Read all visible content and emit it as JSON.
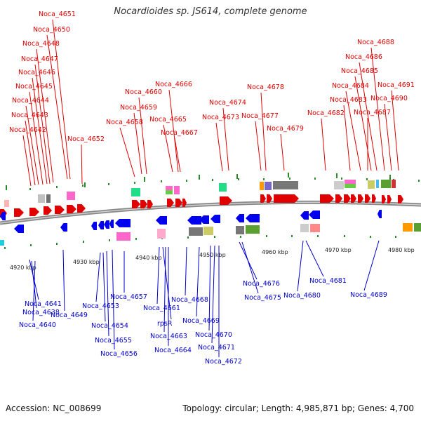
{
  "title": "Nocardioides sp. JS614, complete genome",
  "accession": "Accession: NC_008699",
  "summary": "Topology: circular; Length: 4,985,871 bp; Genes: 4,700",
  "top_genes": [
    "Noca_4651",
    "Noca_4650",
    "Noca_4648",
    "Noca_4647",
    "Noca_4646",
    "Noca_4645",
    "Noca_4644",
    "Noca_4643",
    "Noca_4642",
    "Noca_4652",
    "Noca_4660",
    "Noca_4659",
    "Noca_4658",
    "Noca_4666",
    "Noca_4665",
    "Noca_4667",
    "Noca_4674",
    "Noca_4673",
    "Noca_4678",
    "Noca_4677",
    "Noca_4679",
    "Noca_4688",
    "Noca_4686",
    "Noca_4685",
    "Noca_4684",
    "Noca_4683",
    "Noca_4682",
    "Noca_4687",
    "Noca_4691",
    "Noca_4690"
  ],
  "bottom_genes": [
    "Noca_4641",
    "Noca_4638",
    "Noca_4640",
    "Noca_4649",
    "Noca_4653",
    "Noca_4654",
    "Noca_4655",
    "Noca_4656",
    "Noca_4657",
    "Noca_4661",
    "rpsR",
    "Noca_4663",
    "Noca_4664",
    "Noca_4668",
    "Noca_4669",
    "Noca_4670",
    "Noca_4671",
    "Noca_4672",
    "Noca_4676",
    "Noca_4675",
    "Noca_4680",
    "Noca_4681",
    "Noca_4689"
  ],
  "scale_labels": [
    "4920 kbp",
    "4930 kbp",
    "4940 kbp",
    "4950 kbp",
    "4960 kbp",
    "4970 kbp",
    "4980 kbp"
  ],
  "colors": {
    "forward": "#e00000",
    "reverse": "#0000ee",
    "top_label": "#dd0000",
    "bottom_label": "#0000cc",
    "backbone": "#888888"
  }
}
